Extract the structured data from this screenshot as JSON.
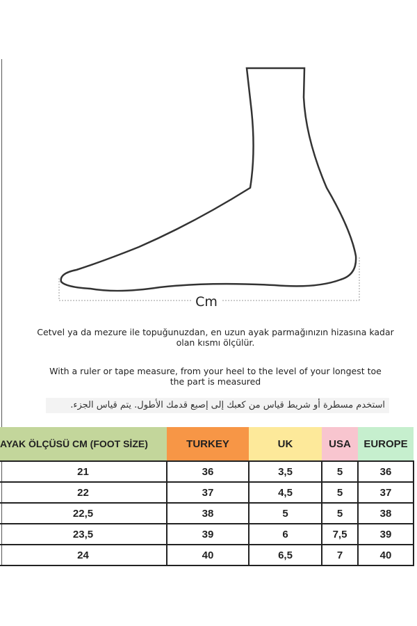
{
  "diagram": {
    "measure_label": "Cm"
  },
  "instructions": {
    "turkish": [
      "Cetvel ya da mezure ile topuğunuzdan, en uzun ayak parmağınızın hizasına kadar",
      "olan kısmı ölçülür."
    ],
    "english": [
      "With a ruler or tape measure, from your heel to the level of your longest toe",
      "the part is measured"
    ],
    "arabic": "استخدم مسطرة أو شريط قياس من كعبك إلى إصبع قدمك الأطول. يتم قياس الجزء."
  },
  "table": {
    "headers": [
      {
        "label": "AYAK ÖLÇÜSÜ CM (FOOT SİZE)",
        "color": "#c3d69b"
      },
      {
        "label": "TURKEY",
        "color": "#f79646"
      },
      {
        "label": "UK",
        "color": "#fde99a"
      },
      {
        "label": "USA",
        "color": "#f8c5cf"
      },
      {
        "label": "EUROPE",
        "color": "#c6efce"
      }
    ],
    "rows": [
      [
        "21",
        "36",
        "3,5",
        "5",
        "36"
      ],
      [
        "22",
        "37",
        "4,5",
        "5",
        "37"
      ],
      [
        "22,5",
        "38",
        "5",
        "5",
        "38"
      ],
      [
        "23,5",
        "39",
        "6",
        "7,5",
        "39"
      ],
      [
        "24",
        "40",
        "6,5",
        "7",
        "40"
      ]
    ]
  }
}
